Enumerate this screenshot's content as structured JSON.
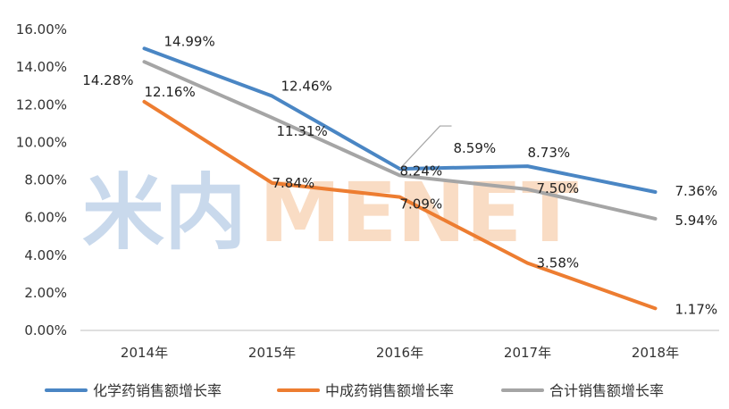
{
  "watermark": {
    "brand_cn": "米内",
    "brand_en": "MENET"
  },
  "colors": {
    "series": [
      "#4a86c4",
      "#ed7d31",
      "#a5a5a5"
    ],
    "axis": "#bfbfbf",
    "watermark_blue": "#c9d9ec",
    "watermark_orange": "#f9dcc4"
  },
  "chart_data": {
    "type": "line",
    "categories": [
      "2014年",
      "2015年",
      "2016年",
      "2017年",
      "2018年"
    ],
    "series": [
      {
        "name": "化学药销售额增长率",
        "values": [
          14.99,
          12.46,
          8.59,
          8.73,
          7.36
        ],
        "labels": [
          "14.99%",
          "12.46%",
          "8.59%",
          "8.73%",
          "7.36%"
        ]
      },
      {
        "name": "中成药销售额增长率",
        "values": [
          12.16,
          7.84,
          7.09,
          3.58,
          1.17
        ],
        "labels": [
          "12.16%",
          "7.84%",
          "7.09%",
          "3.58%",
          "1.17%"
        ]
      },
      {
        "name": "合计销售额增长率",
        "values": [
          14.28,
          11.31,
          8.24,
          7.5,
          5.94
        ],
        "labels": [
          "14.28%",
          "11.31%",
          "8.24%",
          "7.50%",
          "5.94%"
        ]
      }
    ],
    "y_ticks": [
      "0.00%",
      "2.00%",
      "4.00%",
      "6.00%",
      "8.00%",
      "10.00%",
      "12.00%",
      "14.00%",
      "16.00%"
    ],
    "ylim": [
      0,
      16
    ],
    "grid": false,
    "legend_position": "bottom"
  }
}
